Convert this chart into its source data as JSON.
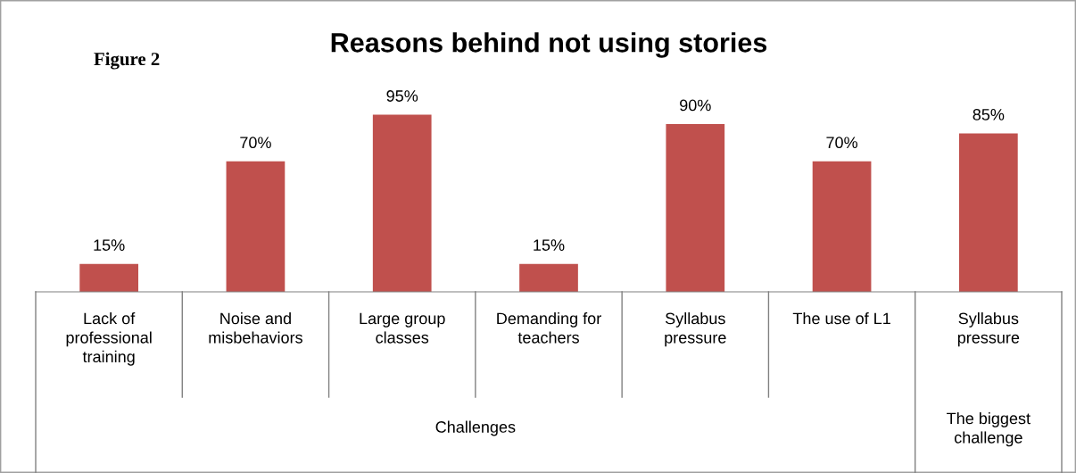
{
  "chart_data": {
    "type": "bar",
    "title": "Reasons behind not using stories",
    "categories": [
      "Lack of\nprofessional\ntraining",
      "Noise and\nmisbehaviors",
      "Large group\nclasses",
      "Demanding for\nteachers",
      "Syllabus\npressure",
      "The use of L1",
      "Syllabus\npressure"
    ],
    "values": [
      15,
      70,
      95,
      15,
      90,
      70,
      85
    ],
    "value_labels": [
      "15%",
      "70%",
      "95%",
      "15%",
      "90%",
      "70%",
      "85%"
    ],
    "color": "#c0504d",
    "annotations": [
      "Figure 2",
      "Challenges",
      "The biggest\nchallenge"
    ]
  }
}
